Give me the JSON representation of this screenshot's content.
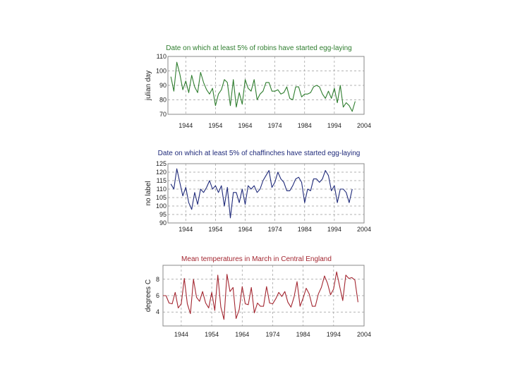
{
  "chart_data": [
    {
      "type": "line",
      "title": "Date on which at least 5% of robins have started egg-laying",
      "ylabel": "julian day",
      "xlabel": "",
      "color": "#2e7d2e",
      "xlim": [
        1938,
        2004
      ],
      "ylim": [
        70,
        110
      ],
      "yticks": [
        70,
        80,
        90,
        100,
        110
      ],
      "xticks": [
        1944,
        1954,
        1964,
        1974,
        1984,
        1994,
        2004
      ],
      "x": [
        1939,
        1940,
        1941,
        1942,
        1943,
        1944,
        1945,
        1946,
        1947,
        1948,
        1949,
        1950,
        1951,
        1952,
        1953,
        1954,
        1955,
        1956,
        1957,
        1958,
        1959,
        1960,
        1961,
        1962,
        1963,
        1964,
        1965,
        1966,
        1967,
        1968,
        1969,
        1970,
        1971,
        1972,
        1973,
        1974,
        1975,
        1976,
        1977,
        1978,
        1979,
        1980,
        1981,
        1982,
        1983,
        1984,
        1985,
        1986,
        1987,
        1988,
        1989,
        1990,
        1991,
        1992,
        1993,
        1994,
        1995,
        1996,
        1997,
        1998,
        1999,
        2000,
        2001
      ],
      "y": [
        96,
        86,
        106,
        98,
        87,
        93,
        85,
        97,
        89,
        85,
        99,
        92,
        87,
        84,
        88,
        76,
        84,
        87,
        94,
        92,
        76,
        94,
        75,
        85,
        77,
        94,
        88,
        86,
        94,
        80,
        84,
        86,
        92,
        92,
        86,
        86,
        87,
        84,
        85,
        89,
        81,
        80,
        89,
        89,
        82,
        84,
        84,
        85,
        89,
        90,
        89,
        84,
        81,
        86,
        81,
        88,
        78,
        90,
        75,
        78,
        76,
        72,
        79
      ]
    },
    {
      "type": "line",
      "title": "Date on which at least 5% of chaffinches have started egg-laying",
      "ylabel": "no label",
      "xlabel": "",
      "color": "#1f2a7a",
      "xlim": [
        1938,
        2004
      ],
      "ylim": [
        90,
        125
      ],
      "yticks": [
        90,
        95,
        100,
        105,
        110,
        115,
        120,
        125
      ],
      "xticks": [
        1944,
        1954,
        1964,
        1974,
        1984,
        1994,
        2004
      ],
      "x": [
        1939,
        1940,
        1941,
        1942,
        1943,
        1944,
        1945,
        1946,
        1947,
        1948,
        1949,
        1950,
        1951,
        1952,
        1953,
        1954,
        1955,
        1956,
        1957,
        1958,
        1959,
        1960,
        1961,
        1962,
        1963,
        1964,
        1965,
        1966,
        1967,
        1968,
        1969,
        1970,
        1971,
        1972,
        1973,
        1974,
        1975,
        1976,
        1977,
        1978,
        1979,
        1980,
        1981,
        1982,
        1983,
        1984,
        1985,
        1986,
        1987,
        1988,
        1989,
        1990,
        1991,
        1992,
        1993,
        1994,
        1995,
        1996,
        1997,
        1998,
        1999,
        2000
      ],
      "y": [
        113,
        110,
        122,
        114,
        106,
        111,
        102,
        98,
        108,
        101,
        110,
        108,
        111,
        115,
        110,
        112,
        108,
        112,
        100,
        111,
        93,
        108,
        108,
        102,
        110,
        101,
        112,
        110,
        112,
        108,
        110,
        115,
        118,
        121,
        111,
        114,
        120,
        116,
        114,
        109,
        109,
        112,
        116,
        117,
        114,
        102,
        110,
        109,
        116,
        116,
        114,
        116,
        121,
        118,
        109,
        112,
        102,
        110,
        110,
        108,
        102,
        110
      ]
    },
    {
      "type": "line",
      "title": "Mean temperatures in March in Central England",
      "ylabel": "degrees C",
      "xlabel": "",
      "color": "#a32630",
      "xlim": [
        1938,
        2004
      ],
      "ylim": [
        2.3,
        9.7
      ],
      "yticks": [
        4,
        6,
        8
      ],
      "xticks": [
        1944,
        1954,
        1964,
        1974,
        1984,
        1994,
        2004
      ],
      "x": [
        1938,
        1939,
        1940,
        1941,
        1942,
        1943,
        1944,
        1945,
        1946,
        1947,
        1948,
        1949,
        1950,
        1951,
        1952,
        1953,
        1954,
        1955,
        1956,
        1957,
        1958,
        1959,
        1960,
        1961,
        1962,
        1963,
        1964,
        1965,
        1966,
        1967,
        1968,
        1969,
        1970,
        1971,
        1972,
        1973,
        1974,
        1975,
        1976,
        1977,
        1978,
        1979,
        1980,
        1981,
        1982,
        1983,
        1984,
        1985,
        1986,
        1987,
        1988,
        1989,
        1990,
        1991,
        1992,
        1993,
        1994,
        1995,
        1996,
        1997,
        1998,
        1999,
        2000,
        2001,
        2002
      ],
      "y": [
        6,
        6,
        5.1,
        5,
        6.4,
        4.5,
        5,
        8.1,
        5,
        3.8,
        8,
        5.8,
        5.3,
        6.5,
        5.1,
        4.5,
        6.4,
        4.2,
        8.5,
        4.6,
        3.1,
        8.6,
        6.5,
        7,
        3.2,
        4.3,
        7.1,
        5,
        4.9,
        7,
        3.9,
        5.1,
        4.7,
        4.7,
        7.1,
        5.1,
        5,
        5.6,
        6.4,
        5.9,
        6.5,
        5.2,
        4.6,
        5.8,
        7.7,
        4.7,
        5.7,
        6.9,
        6.2,
        4.7,
        4.7,
        6.2,
        7,
        8.4,
        7.5,
        6.1,
        6.8,
        8.9,
        7.1,
        5.4,
        8.5,
        8.1,
        8.2,
        7.9,
        5.2
      ]
    }
  ]
}
